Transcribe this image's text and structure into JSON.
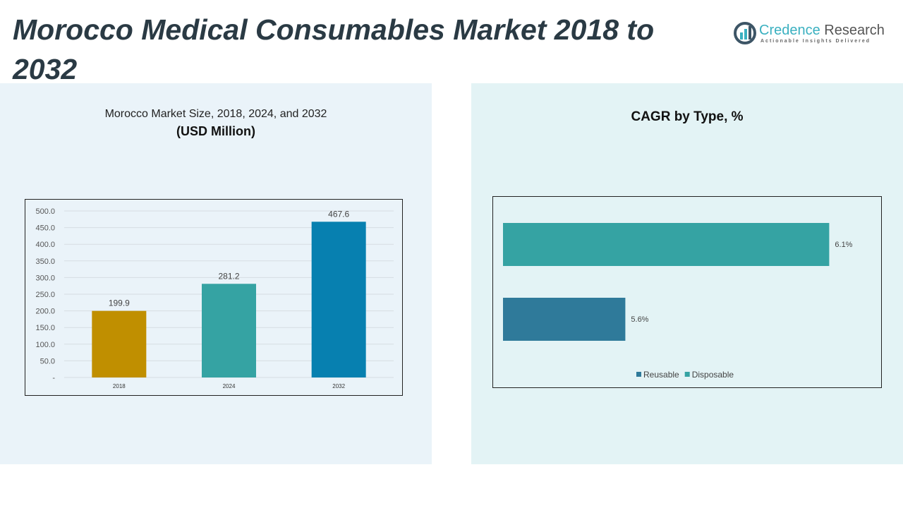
{
  "title": "Morocco Medical Consumables Market 2018 to 2032",
  "logo": {
    "name_a": "Credence",
    "name_b": " Research",
    "tagline": "Actionable Insights Delivered"
  },
  "chart_data": [
    {
      "type": "bar",
      "title": "Morocco Market Size, 2018, 2024, and 2032",
      "subtitle": "(USD Million)",
      "categories": [
        "2018",
        "2024",
        "2032"
      ],
      "values": [
        199.9,
        281.2,
        467.6
      ],
      "colors": [
        "#c08f00",
        "#35a3a3",
        "#0780b0"
      ],
      "ylim": [
        0,
        500
      ],
      "yticks": [
        "-",
        "50.0",
        "100.0",
        "150.0",
        "200.0",
        "250.0",
        "300.0",
        "350.0",
        "400.0",
        "450.0",
        "500.0"
      ],
      "grid": true
    },
    {
      "type": "bar",
      "orientation": "horizontal",
      "title": "CAGR by Type, %",
      "categories": [
        "Disposable",
        "Reusable"
      ],
      "values": [
        6.1,
        5.6
      ],
      "labels": [
        "6.1%",
        "5.6%"
      ],
      "colors": [
        "#35a3a3",
        "#2f7a9a"
      ],
      "xlim": [
        5.3,
        6.1
      ],
      "legend": {
        "placement": "bottom",
        "entries": [
          "Reusable",
          "Disposable"
        ]
      }
    }
  ]
}
